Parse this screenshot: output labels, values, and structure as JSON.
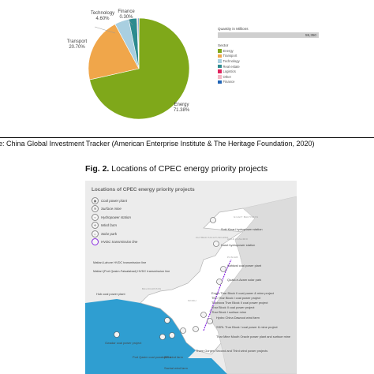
{
  "chart_data": {
    "type": "pie",
    "slices": [
      {
        "label": "Energy",
        "pct_label": "71.38%",
        "value": 71.38,
        "color": "#7fa81a"
      },
      {
        "label": "Transport",
        "pct_label": "20.70%",
        "value": 20.7,
        "color": "#f0a64a"
      },
      {
        "label": "Technology",
        "pct_label": "4.60%",
        "value": 4.6,
        "color": "#a9cfe0"
      },
      {
        "label": "Real estate",
        "pct_label": "",
        "value": 2.6,
        "color": "#2d8b8f"
      },
      {
        "label": "Logistics",
        "pct_label": "",
        "value": 0.1,
        "color": "#e0245e"
      },
      {
        "label": "Other",
        "pct_label": "",
        "value": 0.3,
        "color": "#f2b6c4"
      },
      {
        "label": "Finance",
        "pct_label": "0.30%",
        "value": 0.3,
        "color": "#1f63b5"
      }
    ],
    "quantity_title": "Quantity in Millions",
    "quantity_value": "59,350",
    "sector_title": "Sector",
    "legend_position": "right"
  },
  "source_text": "e: China Global Investment Tracker (American Enterprise Institute & The Heritage Foundation, 2020)",
  "figure_caption": {
    "label": "Fig. 2.",
    "text": " Locations of CPEC energy priority projects"
  },
  "map": {
    "title": "Locations of CPEC energy priority projects",
    "legend": [
      {
        "icon": "coal-plant-icon",
        "glyph": "▣",
        "label": "Coal power plant"
      },
      {
        "icon": "surface-mine-icon",
        "glyph": "⚒",
        "label": "Surface mine"
      },
      {
        "icon": "hydropower-icon",
        "glyph": "≈",
        "label": "Hydropower station"
      },
      {
        "icon": "wind-farm-icon",
        "glyph": "✢",
        "label": "Wind farm"
      },
      {
        "icon": "solar-park-icon",
        "glyph": "☼",
        "label": "Solar park"
      },
      {
        "icon": "hvdc-line-icon",
        "glyph": "",
        "label": "HVDC transmission line"
      }
    ],
    "regions": [
      "AZAD KASHMIR",
      "PUNJAB",
      "BALOCHISTAN",
      "SINDH",
      "GILGIT BALTISTAN",
      "KHYBER PAKHTUNKHWA"
    ],
    "labels": {
      "suki": "Suki Kinari hydropower station",
      "karot": "Karot hydropower station",
      "sahiwal": "Sahiwal coal power plant",
      "quaid": "Quaid-e-Azam solar park",
      "matiari": "Matiari-Lahore HVDC transmission line",
      "matiari2": "Matiari (Port Qasim-Faisalabad) HVDC transmission line",
      "hub": "Hub coal power plant",
      "gwadar": "Gwadar coal power project",
      "portqasim": "Port Qasim coal power plant",
      "udr": "UEP wind farm",
      "sachal": "Sachal wind farm",
      "threegorges": "Three Gorges Second and Third wind power projects",
      "engro": "Engro Thar Block II coal power & mine project",
      "tec": "TEC Thar Block I coal power project",
      "thalnova": "Thalnova Thar Block II coal power project",
      "tharblock2": "Thar Block II coal power project",
      "tharblock1": "Thar Block I surface mine",
      "hydro": "Hydro China Dawood wind farm",
      "ssrl": "SSRL Thar Block I coal power & mine project",
      "tharmine": "Thar Mine Mouth Oracle power plant and surface mine"
    }
  }
}
